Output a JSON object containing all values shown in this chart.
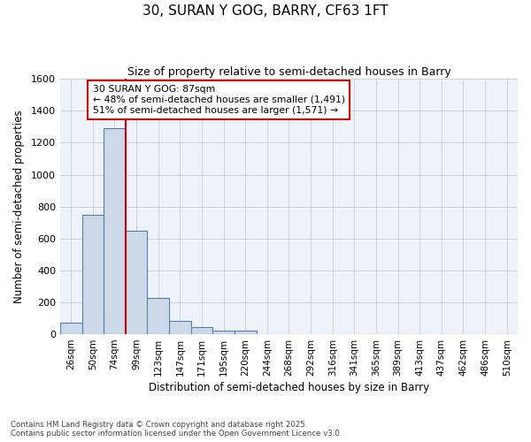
{
  "title1": "30, SURAN Y GOG, BARRY, CF63 1FT",
  "title2": "Size of property relative to semi-detached houses in Barry",
  "xlabel": "Distribution of semi-detached houses by size in Barry",
  "ylabel": "Number of semi-detached properties",
  "footnote1": "Contains HM Land Registry data © Crown copyright and database right 2025.",
  "footnote2": "Contains public sector information licensed under the Open Government Licence v3.0.",
  "categories": [
    "26sqm",
    "50sqm",
    "74sqm",
    "99sqm",
    "123sqm",
    "147sqm",
    "171sqm",
    "195sqm",
    "220sqm",
    "244sqm",
    "268sqm",
    "292sqm",
    "316sqm",
    "341sqm",
    "365sqm",
    "389sqm",
    "413sqm",
    "437sqm",
    "462sqm",
    "486sqm",
    "510sqm"
  ],
  "values": [
    75,
    750,
    1290,
    650,
    230,
    85,
    45,
    25,
    20,
    0,
    0,
    0,
    0,
    0,
    0,
    0,
    0,
    0,
    0,
    0,
    0
  ],
  "bar_color": "#ccd9e8",
  "bar_edge_color": "#5580b0",
  "grid_color": "#cccccc",
  "bg_color": "#eef2fa",
  "red_line_color": "#cc0000",
  "annotation_text": "30 SURAN Y GOG: 87sqm\n← 48% of semi-detached houses are smaller (1,491)\n51% of semi-detached houses are larger (1,571) →",
  "ylim": [
    0,
    1600
  ],
  "yticks": [
    0,
    200,
    400,
    600,
    800,
    1000,
    1200,
    1400,
    1600
  ],
  "figsize": [
    6.0,
    5.0
  ],
  "dpi": 100
}
